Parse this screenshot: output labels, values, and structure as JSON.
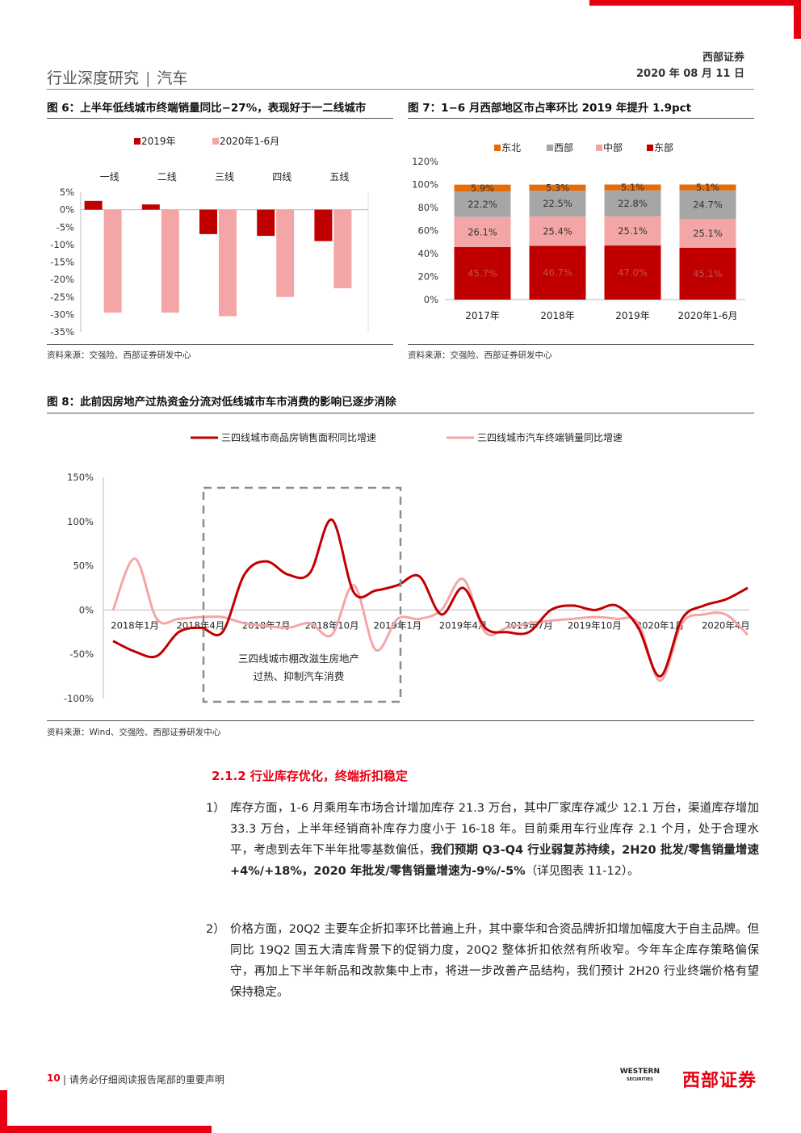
{
  "header": {
    "company": "西部证券",
    "date": "2020 年 08 月 11 日",
    "section": "行业深度研究",
    "sector": "汽车"
  },
  "fig6": {
    "title": "图 6：上半年低线城市终端销量同比−27%，表现好于一二线城市",
    "source": "资料来源：交强险、西部证券研发中心"
  },
  "fig7": {
    "title": "图 7：1−6 月西部地区市占率环比 2019 年提升 1.9pct",
    "source": "资料来源：交强险、西部证券研发中心"
  },
  "fig8": {
    "title": "图 8：此前因房地产过热资金分流对低线城市车市消费的影响已逐步消除",
    "source": "资料来源：Wind、交强险、西部证券研发中心",
    "annotation_line1": "三四线城市棚改滋生房地产",
    "annotation_line2": "过热、抑制汽车消费"
  },
  "section": {
    "heading": "2.1.2 行业库存优化，终端折扣稳定"
  },
  "paragraphs": {
    "p1": {
      "num": "1）",
      "text1": "库存方面，1-6 月乘用车市场合计增加库存 21.3 万台，其中厂家库存减少 12.1 万台，渠道库存增加 33.3 万台，上半年经销商补库存力度小于 16-18 年。目前乘用车行业库存 2.1 个月，处于合理水平，考虑到去年下半年批零基数偏低，",
      "bold": "我们预期 Q3-Q4 行业弱复苏持续，2H20 批发/零售销量增速+4%/+18%，2020 年批发/零售销量增速为-9%/-5%",
      "text2": "（详见图表 11-12）。"
    },
    "p2": {
      "num": "2）",
      "text": "价格方面，20Q2 主要车企折扣率环比普遍上升，其中豪华和合资品牌折扣增加幅度大于自主品牌。但同比 19Q2 国五大清库背景下的促销力度，20Q2 整体折扣依然有所收窄。今年车企库存策略偏保守，再加上下半年新品和改款集中上市，将进一步改善产品结构，我们预计 2H20 行业终端价格有望保持稳定。"
    }
  },
  "footer": {
    "page": "10",
    "notice": "| 请务必仔细阅读报告尾部的重要声明",
    "logo_en_1": "WESTERN",
    "logo_en_2": "SECURITIES",
    "logo_cn": "西部证券"
  },
  "colors": {
    "accent": "#e60012",
    "dark_red": "#c00000",
    "pink": "#f4a6a6",
    "grey": "#a6a6a6",
    "orange": "#e46c0a"
  },
  "chart_data": [
    {
      "id": "fig6",
      "type": "bar",
      "categories": [
        "一线",
        "二线",
        "三线",
        "四线",
        "五线"
      ],
      "series": [
        {
          "name": "2019年",
          "values": [
            2.5,
            1.5,
            -7.0,
            -7.5,
            -9.0
          ]
        },
        {
          "name": "2020年1-6月",
          "values": [
            -29.5,
            -29.5,
            -30.5,
            -25.0,
            -22.5
          ]
        }
      ],
      "ylim": [
        -35,
        5
      ],
      "yticks": [
        "5%",
        "0%",
        "-5%",
        "-10%",
        "-15%",
        "-20%",
        "-25%",
        "-30%",
        "-35%"
      ],
      "legend": "top"
    },
    {
      "id": "fig7",
      "type": "bar",
      "stacked": true,
      "categories": [
        "2017年",
        "2018年",
        "2019年",
        "2020年1-6月"
      ],
      "series": [
        {
          "name": "东部",
          "values": [
            45.7,
            46.7,
            47.0,
            45.1
          ],
          "labels": [
            "45.7%",
            "46.7%",
            "47.0%",
            "45.1%"
          ]
        },
        {
          "name": "中部",
          "values": [
            26.1,
            25.4,
            25.1,
            25.1
          ],
          "labels": [
            "26.1%",
            "25.4%",
            "25.1%",
            "25.1%"
          ]
        },
        {
          "name": "西部",
          "values": [
            22.2,
            22.5,
            22.8,
            24.7
          ],
          "labels": [
            "22.2%",
            "22.5%",
            "22.8%",
            "24.7%"
          ]
        },
        {
          "name": "东北",
          "values": [
            5.9,
            5.3,
            5.1,
            5.1
          ],
          "labels": [
            "5.9%",
            "5.3%",
            "5.1%",
            "5.1%"
          ]
        }
      ],
      "legend_order": [
        "东北",
        "西部",
        "中部",
        "东部"
      ],
      "ylim": [
        0,
        120
      ],
      "yticks": [
        "0%",
        "20%",
        "40%",
        "60%",
        "80%",
        "100%",
        "120%"
      ],
      "legend": "top"
    },
    {
      "id": "fig8",
      "type": "line",
      "x_ticks": [
        "2018年1月",
        "2018年4月",
        "2018年7月",
        "2018年10月",
        "2019年1月",
        "2019年4月",
        "2019年7月",
        "2019年10月",
        "2020年1月",
        "2020年4月"
      ],
      "x_start": "2017-12",
      "x_months": 31,
      "ylim": [
        -100,
        150
      ],
      "yticks": [
        "150%",
        "100%",
        "50%",
        "0%",
        "-50%",
        "-100%"
      ],
      "series": [
        {
          "name": "三四线城市商品房销售面积同比增速",
          "values": [
            -35,
            -47,
            -52,
            -25,
            -20,
            -25,
            40,
            55,
            40,
            42,
            102,
            20,
            22,
            28,
            38,
            -5,
            25,
            -20,
            -25,
            -25,
            0,
            5,
            0,
            5,
            -20,
            -75,
            -10,
            5,
            12,
            25
          ]
        },
        {
          "name": "三四线城市汽车终端销量同比增速",
          "values": [
            0,
            58,
            -10,
            -10,
            -8,
            -8,
            -15,
            -18,
            -20,
            -15,
            -28,
            28,
            -45,
            -10,
            -10,
            0,
            35,
            -25,
            -20,
            -15,
            -12,
            -10,
            -8,
            -10,
            -15,
            -80,
            -15,
            -5,
            -5,
            -28
          ]
        }
      ],
      "legend": "top"
    }
  ]
}
